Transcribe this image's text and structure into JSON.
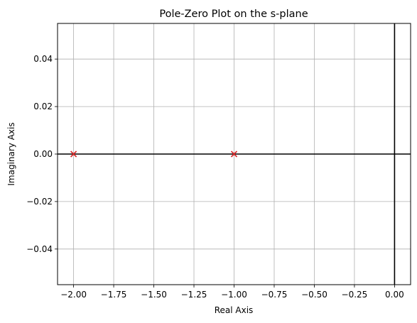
{
  "chart_data": {
    "type": "scatter",
    "title": "Pole-Zero Plot on the s-plane",
    "xlabel": "Real Axis",
    "ylabel": "Imaginary Axis",
    "xlim": [
      -2.1,
      0.1
    ],
    "ylim": [
      -0.055,
      0.055
    ],
    "xticks": [
      -2.0,
      -1.75,
      -1.5,
      -1.25,
      -1.0,
      -0.75,
      -0.5,
      -0.25,
      0.0
    ],
    "xtick_labels": [
      "−2.00",
      "−1.75",
      "−1.50",
      "−1.25",
      "−1.00",
      "−0.75",
      "−0.50",
      "−0.25",
      "0.00"
    ],
    "yticks": [
      -0.04,
      -0.02,
      0.0,
      0.02,
      0.04
    ],
    "ytick_labels": [
      "−0.04",
      "−0.02",
      "0.00",
      "0.02",
      "0.04"
    ],
    "grid": true,
    "reference_lines": {
      "x": 0,
      "y": 0,
      "color": "#000000"
    },
    "series": [
      {
        "marker": "x",
        "color": "#d62728",
        "points": [
          {
            "x": -2.0,
            "y": 0.0
          },
          {
            "x": -1.0,
            "y": 0.0
          }
        ]
      }
    ]
  }
}
